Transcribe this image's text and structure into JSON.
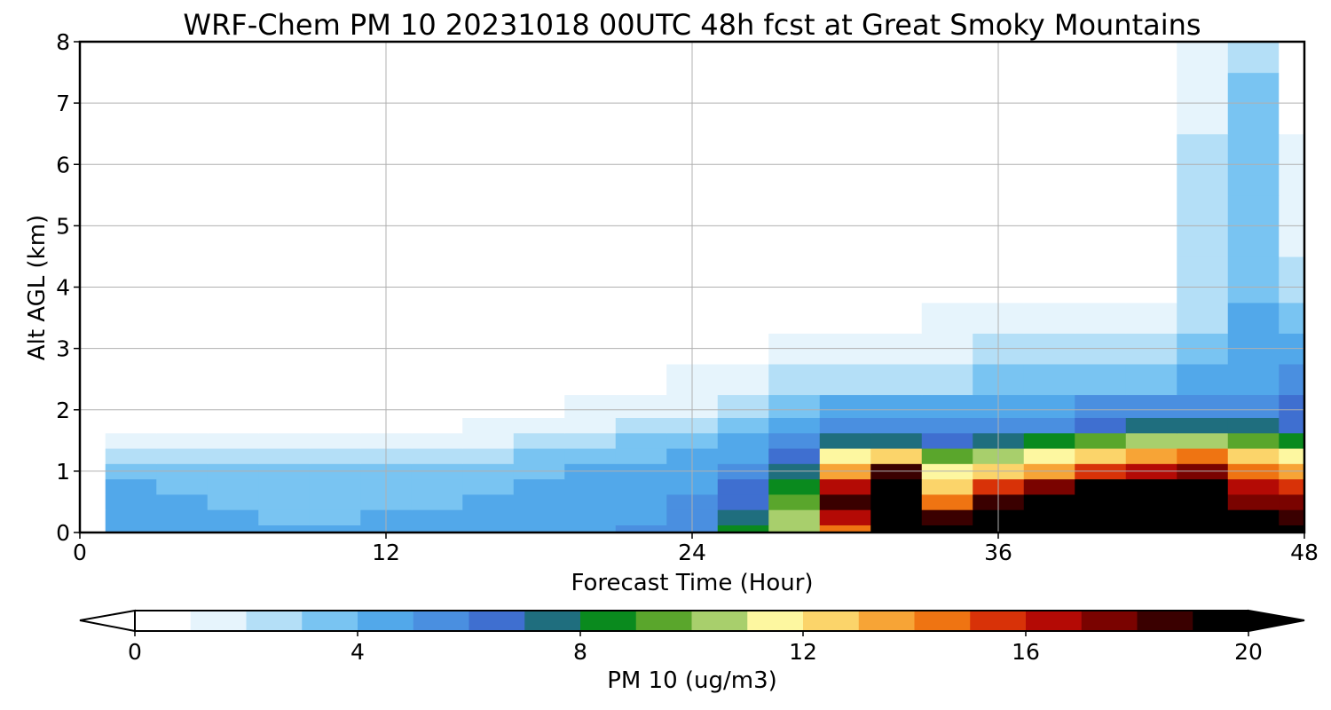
{
  "chart_data": {
    "type": "heatmap",
    "title": "WRF-Chem PM 10  20231018 00UTC 48h fcst at Great Smoky Mountains",
    "xlabel": "Forecast Time (Hour)",
    "ylabel": "Alt AGL (km)",
    "xlim": [
      0,
      48
    ],
    "ylim": [
      0,
      8
    ],
    "xticks": [
      0,
      12,
      24,
      36,
      48
    ],
    "yticks": [
      0,
      1,
      2,
      3,
      4,
      5,
      6,
      7,
      8
    ],
    "grid": true,
    "colorbar": {
      "label": "PM 10  (ug/m3)",
      "range": [
        0,
        20
      ],
      "ticks": [
        0,
        4,
        8,
        12,
        16,
        20
      ],
      "extend": "both",
      "colors": [
        "#ffffff",
        "#e6f4fc",
        "#b4dff7",
        "#79c4f2",
        "#52a8ea",
        "#4a8fe0",
        "#3f6fd0",
        "#1f6e7e",
        "#0a8a1e",
        "#5aa62c",
        "#a8cf6c",
        "#fdf7a0",
        "#fbd46a",
        "#f7a436",
        "#ef7412",
        "#d83208",
        "#b40a05",
        "#7a0300",
        "#3a0000",
        "#000000"
      ]
    },
    "x_hours": [
      0,
      2,
      4,
      6,
      8,
      10,
      12,
      14,
      16,
      18,
      20,
      22,
      24,
      26,
      28,
      30,
      32,
      34,
      36,
      38,
      40,
      42,
      44,
      46,
      48
    ],
    "z_km": [
      0,
      0.25,
      0.5,
      0.75,
      1,
      1.25,
      1.5,
      1.75,
      2,
      2.5,
      3,
      3.5,
      4,
      5,
      6,
      7,
      8
    ],
    "values": [
      [
        0.5,
        4.5,
        4.3,
        4.1,
        4.0,
        4.0,
        4.1,
        4.1,
        4.3,
        4.5,
        4.7,
        5.0,
        5.3,
        8.0,
        10.5,
        14.5,
        20,
        19,
        20,
        20,
        20,
        20,
        20,
        20,
        19
      ],
      [
        0.5,
        4.5,
        4.3,
        4.0,
        3.9,
        3.9,
        4.0,
        4.0,
        4.2,
        4.4,
        4.6,
        4.9,
        5.2,
        7.5,
        10.0,
        16,
        20,
        18,
        20,
        20,
        20,
        20,
        20,
        19,
        18
      ],
      [
        0.5,
        4.3,
        4.1,
        3.9,
        3.8,
        3.8,
        3.9,
        3.9,
        4.1,
        4.3,
        4.5,
        4.8,
        5.0,
        6.8,
        9.0,
        18,
        20,
        14,
        18,
        20,
        20,
        20,
        20,
        17,
        17
      ],
      [
        0.5,
        4.0,
        3.9,
        3.7,
        3.6,
        3.6,
        3.7,
        3.7,
        3.9,
        4.1,
        4.3,
        4.6,
        4.8,
        6.0,
        8.0,
        16,
        20,
        12,
        15,
        17,
        19,
        19,
        20,
        16,
        15
      ],
      [
        0.4,
        3.3,
        3.2,
        3.1,
        3.0,
        3.0,
        3.1,
        3.2,
        3.4,
        3.7,
        4.0,
        4.3,
        4.6,
        5.2,
        7.0,
        13,
        18,
        11,
        12,
        13,
        15,
        16,
        17,
        14,
        13
      ],
      [
        0.3,
        2.2,
        2.1,
        2.0,
        2.0,
        2.0,
        2.1,
        2.3,
        2.6,
        3.0,
        3.4,
        3.8,
        4.2,
        4.8,
        6.0,
        11,
        12,
        9.5,
        10,
        11,
        12,
        13,
        14,
        12,
        11
      ],
      [
        0.2,
        1.1,
        1.0,
        1.0,
        1.0,
        1.1,
        1.2,
        1.4,
        1.7,
        2.2,
        2.7,
        3.2,
        3.6,
        4.3,
        5.2,
        7.5,
        7.0,
        6.5,
        7.0,
        8.0,
        9.0,
        10.5,
        10.5,
        9.0,
        8.5
      ],
      [
        0.1,
        0.6,
        0.6,
        0.6,
        0.6,
        0.6,
        0.7,
        0.8,
        1.0,
        1.4,
        1.9,
        2.4,
        2.9,
        3.7,
        4.4,
        5.2,
        5.2,
        5.0,
        5.2,
        5.6,
        6.2,
        7.0,
        7.5,
        7.0,
        6.5
      ],
      [
        0.1,
        0.4,
        0.4,
        0.4,
        0.4,
        0.4,
        0.5,
        0.5,
        0.6,
        0.8,
        1.1,
        1.5,
        1.9,
        2.8,
        3.4,
        4.0,
        4.2,
        4.2,
        4.4,
        4.6,
        5.0,
        5.2,
        5.0,
        5.8,
        6.0
      ],
      [
        0.1,
        0.3,
        0.3,
        0.3,
        0.3,
        0.3,
        0.3,
        0.3,
        0.4,
        0.5,
        0.6,
        0.8,
        1.0,
        1.5,
        2.0,
        2.5,
        2.7,
        2.9,
        3.1,
        3.3,
        3.5,
        3.6,
        4.0,
        4.8,
        5.0
      ],
      [
        0.1,
        0.3,
        0.3,
        0.3,
        0.2,
        0.2,
        0.2,
        0.2,
        0.3,
        0.4,
        0.4,
        0.5,
        0.6,
        0.9,
        1.1,
        1.3,
        1.5,
        1.8,
        2.1,
        2.3,
        2.3,
        2.4,
        3.2,
        4.5,
        4.0
      ],
      [
        0.1,
        0.3,
        0.3,
        0.2,
        0.2,
        0.2,
        0.2,
        0.2,
        0.2,
        0.3,
        0.3,
        0.3,
        0.4,
        0.5,
        0.6,
        0.7,
        0.8,
        1.0,
        1.3,
        1.6,
        1.6,
        1.5,
        2.8,
        4.3,
        3.2
      ],
      [
        0.1,
        0.3,
        0.2,
        0.2,
        0.2,
        0.2,
        0.2,
        0.2,
        0.2,
        0.2,
        0.2,
        0.3,
        0.3,
        0.3,
        0.3,
        0.4,
        0.4,
        0.5,
        0.6,
        0.7,
        0.7,
        0.9,
        2.5,
        3.8,
        2.2
      ],
      [
        0.1,
        0.2,
        0.2,
        0.2,
        0.2,
        0.2,
        0.1,
        0.1,
        0.2,
        0.2,
        0.2,
        0.2,
        0.2,
        0.3,
        0.3,
        0.3,
        0.4,
        0.4,
        0.4,
        0.4,
        0.5,
        0.7,
        2.2,
        3.5,
        1.5
      ],
      [
        0.1,
        0.1,
        0.1,
        0.1,
        0.1,
        0.1,
        0.1,
        0.1,
        0.2,
        0.2,
        0.2,
        0.3,
        0.3,
        0.5,
        0.7,
        0.7,
        0.6,
        0.5,
        0.4,
        0.4,
        0.4,
        0.6,
        2.0,
        3.2,
        1.0
      ],
      [
        0.1,
        0.1,
        0.1,
        0.1,
        0.1,
        0.1,
        0.1,
        0.1,
        0.1,
        0.2,
        0.2,
        0.3,
        0.4,
        0.6,
        0.7,
        0.7,
        0.6,
        0.4,
        0.3,
        0.3,
        0.3,
        0.5,
        1.8,
        3.0,
        0.8
      ],
      [
        0.1,
        0.1,
        0.1,
        0.1,
        0.1,
        0.1,
        0.1,
        0.1,
        0.1,
        0.2,
        0.2,
        0.3,
        0.3,
        0.5,
        0.6,
        0.6,
        0.5,
        0.4,
        0.3,
        0.3,
        0.3,
        0.4,
        1.6,
        2.8,
        0.7
      ]
    ]
  }
}
